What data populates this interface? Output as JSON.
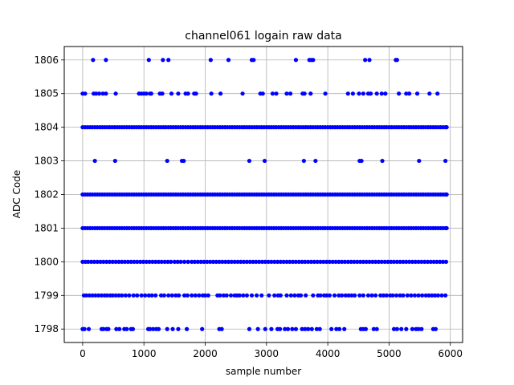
{
  "chart_data": {
    "type": "scatter",
    "title": "channel061 logain raw data",
    "xlabel": "sample number",
    "ylabel": "ADC Code",
    "xlim": [
      -300,
      6200
    ],
    "ylim": [
      1797.6,
      1806.4
    ],
    "x_ticks": [
      0,
      1000,
      2000,
      3000,
      4000,
      5000,
      6000
    ],
    "y_ticks": [
      1798,
      1799,
      1800,
      1801,
      1802,
      1803,
      1804,
      1805,
      1806
    ],
    "grid": true,
    "marker_color": "#0000ff",
    "sample_range": [
      0,
      5940
    ],
    "levels": [
      {
        "y": 1806,
        "x": [
          170,
          380,
          1080,
          1310,
          1400,
          2090,
          2380,
          2760,
          2790,
          3480,
          3700,
          3730,
          3760,
          4610,
          4680,
          5110,
          5130
        ]
      },
      {
        "y": 1805,
        "x": [
          0,
          40,
          180,
          220,
          270,
          330,
          380,
          540,
          920,
          960,
          1000,
          1040,
          1100,
          1120,
          1260,
          1300,
          1450,
          1560,
          1680,
          1720,
          1820,
          1850,
          2100,
          2250,
          2610,
          2900,
          2940,
          3100,
          3160,
          3330,
          3390,
          3590,
          3620,
          3720,
          3960,
          4330,
          4410,
          4510,
          4580,
          4660,
          4700,
          4800,
          4880,
          4940,
          5160,
          5280,
          5330,
          5460,
          5660,
          5790
        ]
      },
      {
        "y": 1803,
        "x": [
          200,
          530,
          1380,
          1620,
          1650,
          2720,
          2970,
          3610,
          3800,
          4520,
          4550,
          4890,
          5490,
          5920
        ]
      },
      {
        "y": 1798,
        "x": [
          0,
          30,
          100,
          310,
          340,
          390,
          420,
          550,
          600,
          680,
          720,
          790,
          820,
          1070,
          1100,
          1150,
          1200,
          1240,
          1380,
          1470,
          1560,
          1700,
          1950,
          2230,
          2270,
          2720,
          2860,
          2980,
          3080,
          3180,
          3220,
          3300,
          3350,
          3420,
          3480,
          3580,
          3630,
          3680,
          3740,
          3820,
          3870,
          4060,
          4140,
          4190,
          4270,
          4540,
          4580,
          4620,
          4750,
          4800,
          5080,
          5130,
          5200,
          5280,
          5380,
          5440,
          5480,
          5530,
          5720,
          5760
        ]
      },
      {
        "y": 1799,
        "x": [
          20,
          60,
          110,
          160,
          210,
          260,
          310,
          360,
          400,
          450,
          490,
          540,
          590,
          640,
          700,
          760,
          830,
          890,
          960,
          1020,
          1080,
          1130,
          1190,
          1280,
          1330,
          1400,
          1460,
          1520,
          1570,
          1660,
          1710,
          1780,
          1840,
          1900,
          1960,
          2000,
          2050,
          2200,
          2240,
          2300,
          2350,
          2420,
          2480,
          2520,
          2560,
          2620,
          2680,
          2760,
          2840,
          2920,
          3040,
          3130,
          3190,
          3230,
          3330,
          3400,
          3460,
          3520,
          3560,
          3640,
          3760,
          3840,
          3880,
          3940,
          3980,
          4030,
          4110,
          4180,
          4230,
          4290,
          4340,
          4390,
          4440,
          4520,
          4580,
          4660,
          4720,
          4780,
          4860,
          4910,
          4960,
          5020,
          5060,
          5120,
          5180,
          5230,
          5300,
          5360,
          5420,
          5480,
          5540,
          5600,
          5650,
          5700,
          5750,
          5800,
          5860,
          5920
        ]
      },
      {
        "y": 1800,
        "x": [
          0,
          45,
          90,
          140,
          190,
          240,
          290,
          340,
          390,
          440,
          490,
          540,
          590,
          640,
          690,
          740,
          790,
          840,
          890,
          940,
          990,
          1040,
          1090,
          1140,
          1190,
          1240,
          1290,
          1340,
          1390,
          1440,
          1500,
          1550,
          1600,
          1660,
          1720,
          1780,
          1830,
          1880,
          1930,
          1980,
          2030,
          2080,
          2130,
          2180,
          2230,
          2280,
          2330,
          2380,
          2430,
          2480,
          2530,
          2580,
          2630,
          2680,
          2730,
          2780,
          2830,
          2880,
          2930,
          2980,
          3030,
          3080,
          3130,
          3180,
          3230,
          3280,
          3330,
          3380,
          3430,
          3480,
          3530,
          3580,
          3630,
          3680,
          3730,
          3780,
          3830,
          3880,
          3930,
          3980,
          4030,
          4080,
          4130,
          4180,
          4230,
          4280,
          4330,
          4380,
          4430,
          4480,
          4530,
          4580,
          4630,
          4680,
          4730,
          4780,
          4830,
          4880,
          4930,
          4980,
          5030,
          5080,
          5130,
          5180,
          5230,
          5280,
          5330,
          5380,
          5430,
          5480,
          5530,
          5580,
          5630,
          5680,
          5730,
          5780,
          5830,
          5880,
          5930
        ]
      },
      {
        "y": 1801,
        "x": [
          0,
          40,
          80,
          120,
          160,
          200,
          240,
          280,
          320,
          360,
          400,
          440,
          480,
          520,
          560,
          600,
          640,
          680,
          720,
          760,
          800,
          840,
          880,
          920,
          960,
          1000,
          1040,
          1080,
          1120,
          1160,
          1200,
          1240,
          1280,
          1320,
          1360,
          1400,
          1440,
          1480,
          1520,
          1560,
          1600,
          1640,
          1680,
          1720,
          1760,
          1800,
          1840,
          1880,
          1920,
          1960,
          2000,
          2040,
          2080,
          2120,
          2160,
          2200,
          2240,
          2280,
          2320,
          2360,
          2400,
          2440,
          2480,
          2520,
          2560,
          2600,
          2640,
          2680,
          2720,
          2760,
          2800,
          2840,
          2880,
          2920,
          2960,
          3000,
          3040,
          3080,
          3120,
          3160,
          3200,
          3240,
          3280,
          3320,
          3360,
          3400,
          3440,
          3480,
          3520,
          3560,
          3600,
          3640,
          3680,
          3720,
          3760,
          3800,
          3840,
          3880,
          3920,
          3960,
          4000,
          4040,
          4080,
          4120,
          4160,
          4200,
          4240,
          4280,
          4320,
          4360,
          4400,
          4440,
          4480,
          4520,
          4560,
          4600,
          4640,
          4680,
          4720,
          4760,
          4800,
          4840,
          4880,
          4920,
          4960,
          5000,
          5040,
          5080,
          5120,
          5160,
          5200,
          5240,
          5280,
          5320,
          5360,
          5400,
          5440,
          5480,
          5520,
          5560,
          5600,
          5640,
          5680,
          5720,
          5760,
          5800,
          5840,
          5880,
          5920,
          5940
        ]
      },
      {
        "y": 1802,
        "x": [
          0,
          40,
          80,
          120,
          160,
          200,
          240,
          280,
          320,
          360,
          400,
          440,
          480,
          520,
          560,
          600,
          640,
          680,
          720,
          760,
          800,
          840,
          880,
          920,
          960,
          1000,
          1040,
          1080,
          1120,
          1160,
          1200,
          1240,
          1280,
          1320,
          1360,
          1400,
          1440,
          1480,
          1520,
          1560,
          1600,
          1640,
          1680,
          1720,
          1760,
          1800,
          1840,
          1880,
          1920,
          1960,
          2000,
          2040,
          2080,
          2120,
          2160,
          2200,
          2240,
          2280,
          2320,
          2360,
          2400,
          2440,
          2480,
          2520,
          2560,
          2600,
          2640,
          2680,
          2720,
          2760,
          2800,
          2840,
          2880,
          2920,
          2960,
          3000,
          3040,
          3080,
          3120,
          3160,
          3200,
          3240,
          3280,
          3320,
          3360,
          3400,
          3440,
          3480,
          3520,
          3560,
          3600,
          3640,
          3680,
          3720,
          3760,
          3800,
          3840,
          3880,
          3920,
          3960,
          4000,
          4040,
          4080,
          4120,
          4160,
          4200,
          4240,
          4280,
          4320,
          4360,
          4400,
          4440,
          4480,
          4520,
          4560,
          4600,
          4640,
          4680,
          4720,
          4760,
          4800,
          4840,
          4880,
          4920,
          4960,
          5000,
          5040,
          5080,
          5120,
          5160,
          5200,
          5240,
          5280,
          5320,
          5360,
          5400,
          5440,
          5480,
          5520,
          5560,
          5600,
          5640,
          5680,
          5720,
          5760,
          5800,
          5840,
          5880,
          5920,
          5940
        ]
      },
      {
        "y": 1804,
        "x": [
          0,
          40,
          80,
          120,
          160,
          200,
          240,
          280,
          320,
          360,
          400,
          440,
          480,
          520,
          560,
          600,
          640,
          680,
          720,
          760,
          800,
          840,
          880,
          920,
          960,
          1000,
          1040,
          1080,
          1120,
          1160,
          1200,
          1240,
          1280,
          1320,
          1360,
          1400,
          1440,
          1480,
          1520,
          1560,
          1600,
          1640,
          1680,
          1720,
          1760,
          1800,
          1840,
          1880,
          1920,
          1960,
          2000,
          2040,
          2080,
          2120,
          2160,
          2200,
          2240,
          2280,
          2320,
          2360,
          2400,
          2440,
          2480,
          2520,
          2560,
          2600,
          2640,
          2680,
          2720,
          2760,
          2800,
          2840,
          2880,
          2920,
          2960,
          3000,
          3040,
          3080,
          3120,
          3160,
          3200,
          3240,
          3280,
          3320,
          3360,
          3400,
          3440,
          3480,
          3520,
          3560,
          3600,
          3640,
          3680,
          3720,
          3760,
          3800,
          3840,
          3880,
          3920,
          3960,
          4000,
          4040,
          4080,
          4120,
          4160,
          4200,
          4240,
          4280,
          4320,
          4360,
          4400,
          4440,
          4480,
          4520,
          4560,
          4600,
          4640,
          4680,
          4720,
          4760,
          4800,
          4840,
          4880,
          4920,
          4960,
          5000,
          5040,
          5080,
          5120,
          5160,
          5200,
          5240,
          5280,
          5320,
          5360,
          5400,
          5440,
          5480,
          5520,
          5560,
          5600,
          5640,
          5680,
          5720,
          5760,
          5800,
          5840,
          5880,
          5920,
          5940
        ]
      }
    ]
  }
}
